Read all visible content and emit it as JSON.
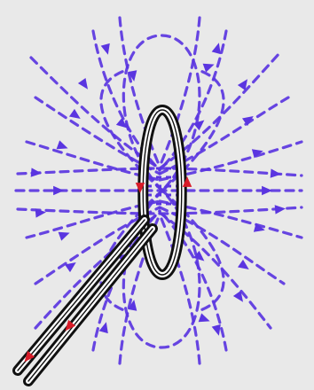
{
  "colors": {
    "background": "#e9e9e9",
    "field_lines": "#5a35e0",
    "wire_outer": "#111111",
    "wire_inner": "#ffffff",
    "current_arrows": "#d81b28"
  },
  "icons": {
    "current_loop": "current-loop-icon",
    "field_line": "magnetic-field-line",
    "field_arrow": "field-direction-arrow",
    "current_arrow": "current-direction-arrow"
  }
}
